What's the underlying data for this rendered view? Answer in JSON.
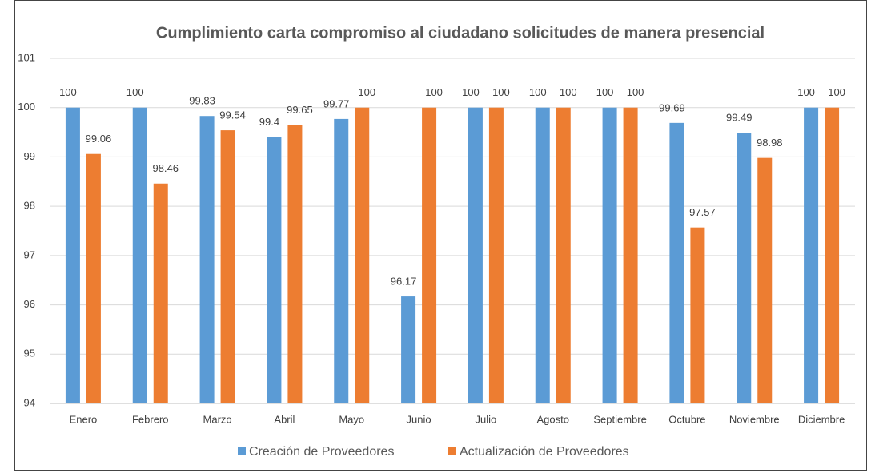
{
  "chart_data": {
    "type": "bar",
    "title": "Cumplimiento carta compromiso al ciudadano solicitudes de manera presencial",
    "categories": [
      "Enero",
      "Febrero",
      "Marzo",
      "Abril",
      "Mayo",
      "Junio",
      "Julio",
      "Agosto",
      "Septiembre",
      "Octubre",
      "Noviembre",
      "Diciembre"
    ],
    "series": [
      {
        "name": "Creación de Proveedores",
        "color": "#5b9bd5",
        "values": [
          100,
          100,
          99.83,
          99.4,
          99.77,
          96.17,
          100,
          100,
          100,
          99.69,
          99.49,
          100
        ]
      },
      {
        "name": "Actualización de Proveedores",
        "color": "#ed7d31",
        "values": [
          99.06,
          98.46,
          99.54,
          99.65,
          100,
          100,
          100,
          100,
          100,
          97.57,
          98.98,
          100
        ]
      }
    ],
    "ylim": [
      94,
      101
    ],
    "yticks": [
      94,
      95,
      96,
      97,
      98,
      99,
      100,
      101
    ],
    "grid": true,
    "legend": "bottom"
  }
}
